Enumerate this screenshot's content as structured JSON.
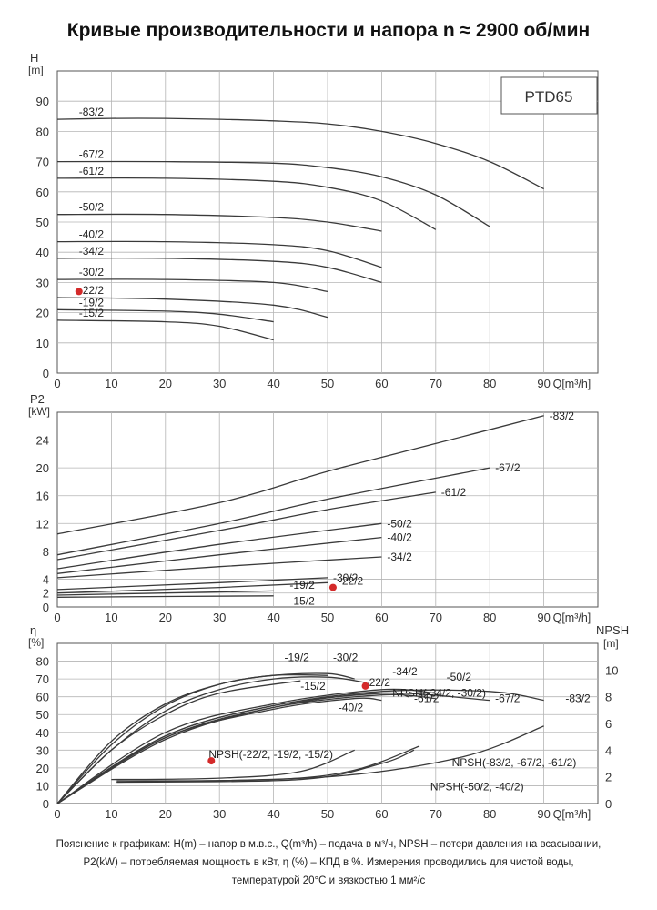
{
  "page": {
    "title": "Кривые производительности и напора n ≈ 2900 об/мин",
    "note": [
      "Пояснение к графикам: H(m) – напор в м.в.с., Q(m³/h) – подача в м³/ч, NPSH – потери давления на всасывании,",
      "P2(kW) – потребляемая мощность в кВт, η (%) – КПД в %. Измерения проводились для чистой воды,",
      "температурой 20°C и вязкостью 1 мм²/с"
    ]
  },
  "colors": {
    "curve": "#3a3a3a",
    "grid": "#b5b5b5",
    "axis": "#555555",
    "marker": "#d42a2a"
  },
  "chart_data": [
    {
      "type": "line",
      "panel": "head",
      "model_label": "PTD65",
      "ylabel": "H [m]",
      "xlabel": "Q[m³/h]",
      "xlim": [
        0,
        100
      ],
      "ylim": [
        0,
        100
      ],
      "xticks": [
        0,
        10,
        20,
        30,
        40,
        50,
        60,
        70,
        80,
        90
      ],
      "yticks": [
        0,
        10,
        20,
        30,
        40,
        50,
        60,
        70,
        80,
        90
      ],
      "grid": true,
      "series": [
        {
          "name": "-83/2",
          "x": [
            0,
            10,
            20,
            30,
            40,
            50,
            60,
            70,
            80,
            90
          ],
          "y": [
            84,
            84.3,
            84.3,
            84,
            83.5,
            82.5,
            80,
            76,
            70,
            61
          ]
        },
        {
          "name": "-67/2",
          "x": [
            0,
            20,
            40,
            50,
            60,
            70,
            80
          ],
          "y": [
            70,
            70,
            69.5,
            68,
            65,
            59,
            48.5
          ]
        },
        {
          "name": "-61/2",
          "x": [
            0,
            20,
            40,
            50,
            60,
            70
          ],
          "y": [
            64.5,
            64.5,
            63.5,
            61.5,
            57,
            47.5
          ]
        },
        {
          "name": "-50/2",
          "x": [
            0,
            20,
            40,
            50,
            60
          ],
          "y": [
            52.5,
            52.5,
            51.5,
            50,
            47
          ]
        },
        {
          "name": "-40/2",
          "x": [
            0,
            20,
            40,
            50,
            60
          ],
          "y": [
            43.5,
            43.5,
            42.5,
            40.5,
            35
          ]
        },
        {
          "name": "-34/2",
          "x": [
            0,
            20,
            40,
            50,
            60
          ],
          "y": [
            38,
            38,
            37,
            35,
            30
          ]
        },
        {
          "name": "-30/2",
          "x": [
            0,
            20,
            40,
            50
          ],
          "y": [
            31,
            31,
            30,
            27
          ]
        },
        {
          "name": "-22/2",
          "x": [
            0,
            20,
            40,
            50
          ],
          "y": [
            25,
            24.5,
            22.5,
            18.5
          ]
        },
        {
          "name": "-19/2",
          "x": [
            0,
            20,
            30,
            40
          ],
          "y": [
            21,
            20.5,
            19.5,
            17
          ]
        },
        {
          "name": "-15/2",
          "x": [
            0,
            20,
            30,
            40
          ],
          "y": [
            17.5,
            17,
            15.5,
            11
          ]
        }
      ],
      "marker": {
        "series": "-22/2",
        "x": 4,
        "y": 27
      }
    },
    {
      "type": "line",
      "panel": "power",
      "ylabel": "P2 [kW]",
      "xlabel": "Q[m³/h]",
      "xlim": [
        0,
        100
      ],
      "ylim": [
        0,
        28
      ],
      "xticks": [
        0,
        10,
        20,
        30,
        40,
        50,
        60,
        70,
        80,
        90
      ],
      "yticks": [
        0,
        2,
        4,
        8,
        12,
        16,
        20,
        24
      ],
      "grid": true,
      "series": [
        {
          "name": "-83/2",
          "x": [
            0,
            30,
            50,
            70,
            90
          ],
          "y": [
            10.5,
            15,
            19.5,
            23.5,
            27.5
          ]
        },
        {
          "name": "-67/2",
          "x": [
            0,
            30,
            50,
            80
          ],
          "y": [
            7.5,
            12,
            15.5,
            20
          ]
        },
        {
          "name": "-61/2",
          "x": [
            0,
            30,
            50,
            70
          ],
          "y": [
            6.8,
            11,
            14,
            16.5
          ]
        },
        {
          "name": "-50/2",
          "x": [
            0,
            30,
            60
          ],
          "y": [
            5.5,
            9,
            12
          ]
        },
        {
          "name": "-40/2",
          "x": [
            0,
            30,
            60
          ],
          "y": [
            4.8,
            7.5,
            10
          ]
        },
        {
          "name": "-34/2",
          "x": [
            0,
            30,
            60
          ],
          "y": [
            4.2,
            5.8,
            7.2
          ]
        },
        {
          "name": "-30/2",
          "x": [
            0,
            30,
            50
          ],
          "y": [
            2.5,
            3.5,
            4.2
          ]
        },
        {
          "name": "-22/2",
          "x": [
            0,
            30,
            50
          ],
          "y": [
            2,
            2.8,
            3.5
          ]
        },
        {
          "name": "-19/2",
          "x": [
            0,
            40
          ],
          "y": [
            1.7,
            2.3
          ]
        },
        {
          "name": "-15/2",
          "x": [
            0,
            40
          ],
          "y": [
            1.4,
            1.6
          ]
        }
      ],
      "marker": {
        "series": "-22/2",
        "x": 51,
        "y": 2.8
      }
    },
    {
      "type": "line",
      "panel": "efficiency_npsh",
      "ylabel": "η [%]",
      "y2label": "NPSH [m]",
      "xlabel": "Q[m³/h]",
      "xlim": [
        0,
        100
      ],
      "ylim": [
        0,
        90
      ],
      "y2lim": [
        0,
        12
      ],
      "xticks": [
        0,
        10,
        20,
        30,
        40,
        50,
        60,
        70,
        80,
        90
      ],
      "yticks": [
        0,
        10,
        20,
        30,
        40,
        50,
        60,
        70,
        80
      ],
      "y2ticks": [
        0,
        2,
        4,
        6,
        8,
        10
      ],
      "grid": true,
      "series": [
        {
          "name": "-19/2",
          "x": [
            0,
            10,
            20,
            30,
            40,
            50
          ],
          "y": [
            0,
            35,
            56,
            67,
            72,
            72
          ]
        },
        {
          "name": "-30/2",
          "x": [
            0,
            10,
            20,
            30,
            40,
            50,
            55
          ],
          "y": [
            0,
            33,
            55,
            67,
            72,
            73,
            70
          ]
        },
        {
          "name": "-15/2",
          "x": [
            0,
            10,
            20,
            30,
            45
          ],
          "y": [
            0,
            30,
            50,
            62,
            69
          ]
        },
        {
          "name": "-22/2",
          "x": [
            0,
            10,
            20,
            30,
            40,
            50,
            57
          ],
          "y": [
            0,
            30,
            52,
            64,
            70,
            71,
            68
          ]
        },
        {
          "name": "-34/2",
          "x": [
            0,
            20,
            40,
            60,
            65
          ],
          "y": [
            0,
            38,
            55,
            62,
            60
          ]
        },
        {
          "name": "-50/2",
          "x": [
            0,
            20,
            40,
            60,
            70
          ],
          "y": [
            0,
            40,
            56,
            64,
            62
          ]
        },
        {
          "name": "-61/2",
          "x": [
            0,
            20,
            40,
            60,
            70
          ],
          "y": [
            0,
            37,
            54,
            61,
            59
          ]
        },
        {
          "name": "-67/2",
          "x": [
            0,
            20,
            40,
            60,
            80
          ],
          "y": [
            0,
            36,
            54,
            62,
            58
          ]
        },
        {
          "name": "-83/2",
          "x": [
            0,
            20,
            40,
            60,
            80,
            90
          ],
          "y": [
            0,
            38,
            55,
            63,
            63,
            58
          ]
        },
        {
          "name": "-40/2",
          "x": [
            0,
            20,
            40,
            55,
            60
          ],
          "y": [
            0,
            37,
            53,
            59,
            58
          ]
        }
      ],
      "npsh_series": [
        {
          "name": "NPSH(-22/2, -19/2, -15/2)",
          "x": [
            10,
            30,
            45,
            55
          ],
          "y": [
            1.8,
            1.9,
            2.4,
            4
          ]
        },
        {
          "name": "NPSH(-34/2, -30/2)",
          "x": [
            11,
            40,
            55,
            67
          ],
          "y": [
            1.7,
            1.8,
            2.5,
            4.3
          ]
        },
        {
          "name": "NPSH(-83/2, -67/2, -61/2)",
          "x": [
            11,
            50,
            75,
            90
          ],
          "y": [
            1.6,
            2,
            3.5,
            5.8
          ]
        },
        {
          "name": "NPSH(-50/2, -40/2)",
          "x": [
            11,
            45,
            60,
            66
          ],
          "y": [
            1.6,
            1.8,
            3,
            4
          ]
        }
      ],
      "marker": {
        "series": "-22/2",
        "x": 57,
        "y": 66
      },
      "npsh_marker": {
        "x": 28.5,
        "y": 3.2
      }
    }
  ]
}
